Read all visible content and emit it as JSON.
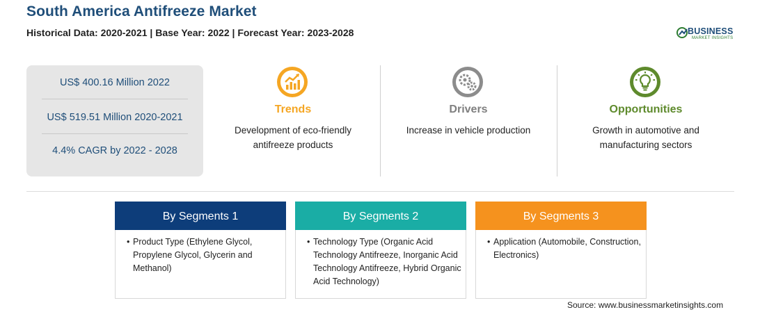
{
  "header": {
    "title": "South America Antifreeze Market",
    "subtitle": "Historical Data: 2020-2021 | Base Year: 2022 | Forecast Year: 2023-2028"
  },
  "logo": {
    "main": "BUSINESS",
    "sub": "MARKET INSIGHTS"
  },
  "stats": [
    "US$ 400.16 Million 2022",
    "US$ 519.51 Million 2020-2021",
    "4.4% CAGR by 2022 - 2028"
  ],
  "cards": [
    {
      "heading": "Trends",
      "icon": "trending-up-icon",
      "color": "#f5a623",
      "text": "Development of eco-friendly antifreeze products"
    },
    {
      "heading": "Drivers",
      "icon": "gears-icon",
      "color": "#7f7f7f",
      "text": "Increase in vehicle production"
    },
    {
      "heading": "Opportunities",
      "icon": "lightbulb-icon",
      "color": "#5e8a2c",
      "text": "Growth in automotive and manufacturing sectors"
    }
  ],
  "segments": [
    {
      "heading": "By Segments 1",
      "color": "#0d3d7a",
      "item": "Product Type (Ethylene Glycol, Propylene Glycol, Glycerin and Methanol)"
    },
    {
      "heading": "By Segments 2",
      "color": "#1aada5",
      "item": "Technology Type (Organic Acid Technology Antifreeze, Inorganic Acid Technology Antifreeze, Hybrid Organic Acid Technology)"
    },
    {
      "heading": "By Segments 3",
      "color": "#f5921e",
      "item": "Application (Automobile, Construction, Electronics)"
    }
  ],
  "source": "Source: www.businessmarketinsights.com"
}
